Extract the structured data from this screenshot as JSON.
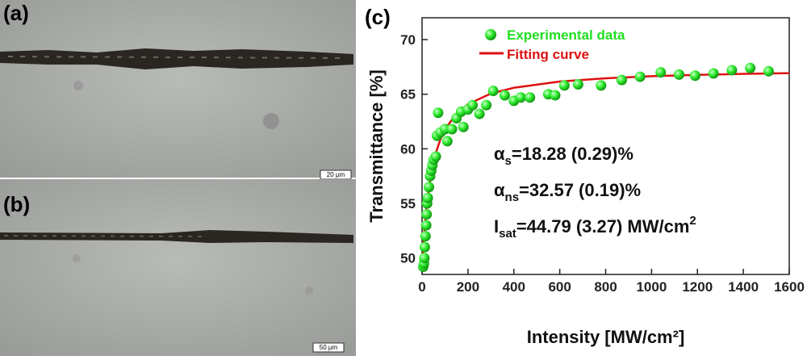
{
  "images": [
    {
      "label": "(a)",
      "scale_bar": "20 µm"
    },
    {
      "label": "(b)",
      "scale_bar": "50 µm"
    }
  ],
  "chart_data": {
    "type": "scatter",
    "panel_label": "(c)",
    "x_label": "Intensity [MW/cm²]",
    "y_label": "Transmittance [%]",
    "xlim": [
      0,
      1600
    ],
    "xticks": [
      0,
      200,
      400,
      600,
      800,
      1000,
      1200,
      1400,
      1600
    ],
    "ylim": [
      48.5,
      72
    ],
    "yticks": [
      50,
      55,
      60,
      65,
      70
    ],
    "legend": "top-left",
    "series": [
      {
        "name": "Experimental data",
        "color": "#22dd22",
        "kind": "points",
        "x": [
          5,
          8,
          10,
          12,
          15,
          18,
          20,
          22,
          25,
          30,
          35,
          40,
          45,
          50,
          60,
          65,
          70,
          80,
          100,
          110,
          130,
          150,
          170,
          180,
          200,
          220,
          250,
          280,
          310,
          360,
          400,
          430,
          470,
          550,
          580,
          620,
          680,
          780,
          870,
          950,
          1040,
          1120,
          1190,
          1270,
          1350,
          1430,
          1510
        ],
        "values": [
          49.2,
          49.5,
          50,
          51,
          52,
          53,
          54,
          55,
          55.5,
          56.5,
          57.5,
          58,
          58.5,
          59,
          59.3,
          61.2,
          63.3,
          61.5,
          61.8,
          60.7,
          61.8,
          62.8,
          63.4,
          62,
          63.6,
          64,
          63.2,
          64,
          65.3,
          64.9,
          64.4,
          64.7,
          64.7,
          65,
          64.9,
          65.8,
          65.9,
          65.8,
          66.3,
          66.6,
          67,
          66.8,
          66.7,
          66.9,
          67.2,
          67.4,
          67.1
        ]
      },
      {
        "name": "Fitting curve",
        "color": "#dd1111",
        "kind": "line",
        "x": [
          0,
          10,
          20,
          40,
          60,
          80,
          100,
          150,
          200,
          300,
          400,
          600,
          800,
          1000,
          1200,
          1400,
          1600
        ],
        "values": [
          49.15,
          52.49,
          54.79,
          57.77,
          59.62,
          60.87,
          61.78,
          63.23,
          64.09,
          65.06,
          65.59,
          66.16,
          66.46,
          66.65,
          66.77,
          66.86,
          66.93
        ]
      }
    ],
    "annotations": [
      {
        "symbol": "α",
        "subscript": "s",
        "text": "=18.28 (0.29)%"
      },
      {
        "symbol": "α",
        "subscript": "ns",
        "text": "=32.57 (0.19)%"
      },
      {
        "symbol": "I",
        "subscript": "sat",
        "text": "=44.79 (3.27) MW/cm",
        "superscript": "2"
      }
    ]
  }
}
